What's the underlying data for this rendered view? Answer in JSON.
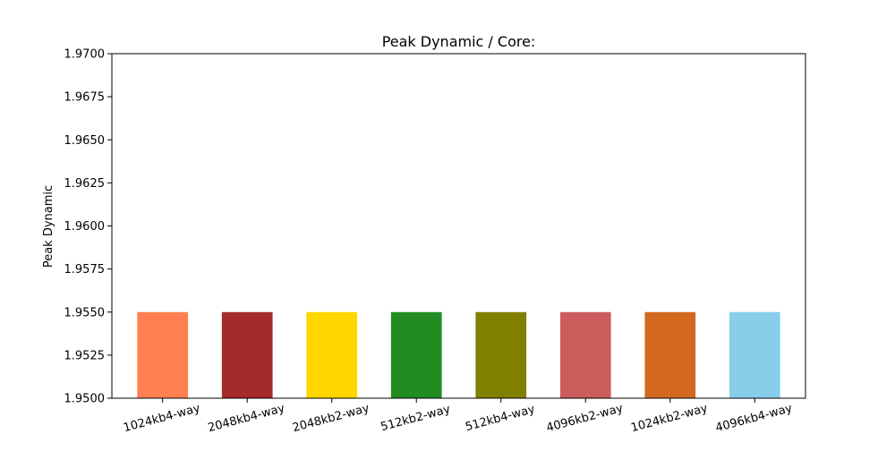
{
  "chart_data": {
    "type": "bar",
    "title": "Peak Dynamic / Core:",
    "xlabel": "",
    "ylabel": "Peak Dynamic",
    "ylim": [
      1.95,
      1.97
    ],
    "yticks": [
      1.95,
      1.9525,
      1.955,
      1.9575,
      1.96,
      1.9625,
      1.965,
      1.9675,
      1.97
    ],
    "ytick_labels": [
      "1.9500",
      "1.9525",
      "1.9550",
      "1.9575",
      "1.9600",
      "1.9625",
      "1.9650",
      "1.9675",
      "1.9700"
    ],
    "categories": [
      "1024kb4-way",
      "2048kb4-way",
      "2048kb2-way",
      "512kb2-way",
      "512kb4-way",
      "4096kb2-way",
      "1024kb2-way",
      "4096kb4-way"
    ],
    "values": [
      1.955,
      1.955,
      1.955,
      1.955,
      1.955,
      1.955,
      1.955,
      1.955
    ],
    "colors": [
      "#ff7f50",
      "#a52a2a",
      "#ffd700",
      "#228b22",
      "#808000",
      "#cd5c5c",
      "#d2691e",
      "#87ceeb"
    ],
    "grid": false,
    "legend": "none"
  }
}
